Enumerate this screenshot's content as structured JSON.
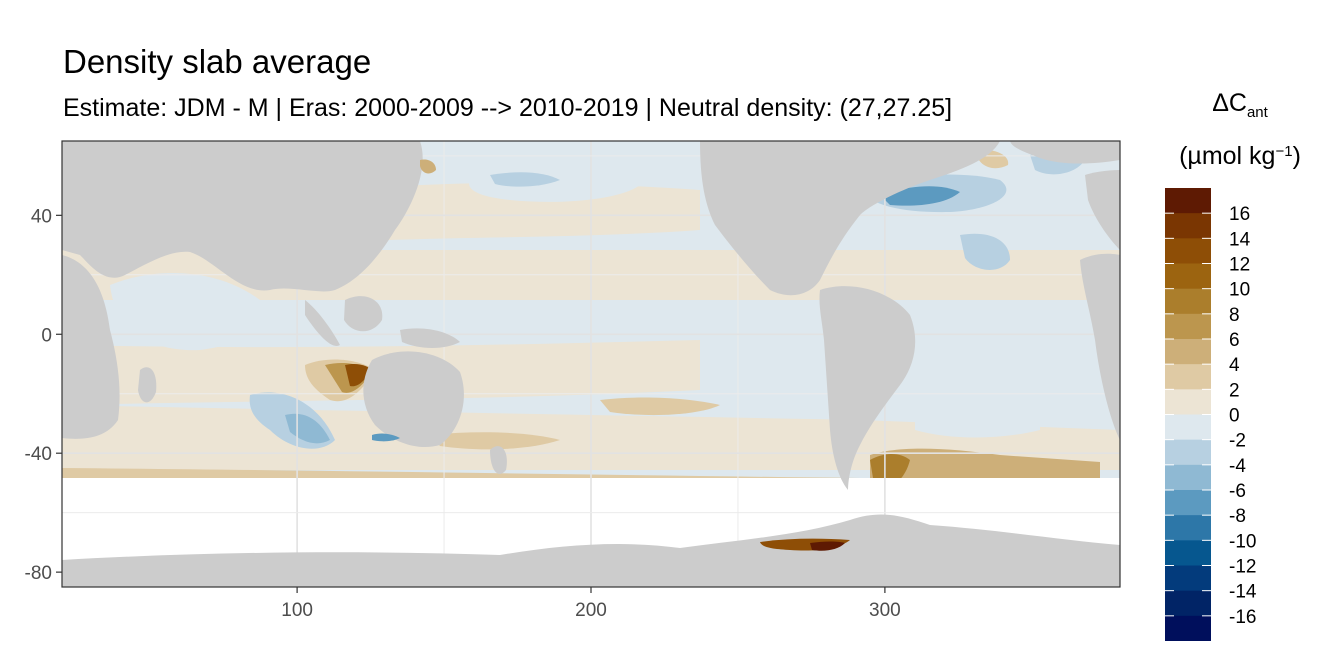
{
  "chart_data": {
    "type": "heatmap",
    "title": "Density slab average",
    "subtitle": "Estimate: JDM - M | Eras: 2000-2009 --> 2010-2019 | Neutral density: (27,27.25]",
    "legend": {
      "title_symbol": "ΔC",
      "title_sub": "ant",
      "unit_prefix": "(µmol kg",
      "unit_sup": "−1",
      "unit_suffix": ")",
      "placement": "right",
      "bins": [
        {
          "label": "16",
          "color": "#5e1a03"
        },
        {
          "label": "14",
          "color": "#7a3602"
        },
        {
          "label": "12",
          "color": "#8e4e06"
        },
        {
          "label": "10",
          "color": "#9c6410"
        },
        {
          "label": "8",
          "color": "#ab7e2c"
        },
        {
          "label": "6",
          "color": "#bc964e"
        },
        {
          "label": "4",
          "color": "#cdaf79"
        },
        {
          "label": "2",
          "color": "#dfcaa4"
        },
        {
          "label": "0",
          "color": "#ece4d4"
        },
        {
          "label": "-2",
          "color": "#dee8ee"
        },
        {
          "label": "-4",
          "color": "#b7d0e1"
        },
        {
          "label": "-6",
          "color": "#8fb9d3"
        },
        {
          "label": "-8",
          "color": "#5c9ac0"
        },
        {
          "label": "-10",
          "color": "#2d77a8"
        },
        {
          "label": "-12",
          "color": "#06578f"
        },
        {
          "label": "-14",
          "color": "#033b7c"
        },
        {
          "label": "-16",
          "color": "#012466"
        }
      ],
      "extra_bin_color": "#000f5c"
    },
    "x_axis": {
      "ticks": [
        100,
        200,
        300
      ],
      "range": [
        20,
        380
      ],
      "label": ""
    },
    "y_axis": {
      "ticks": [
        40,
        0,
        -40,
        -80
      ],
      "range": [
        -85,
        65
      ],
      "label": ""
    },
    "grid": true,
    "land_color": "#cccccc",
    "no_data_color": "#ffffff"
  }
}
